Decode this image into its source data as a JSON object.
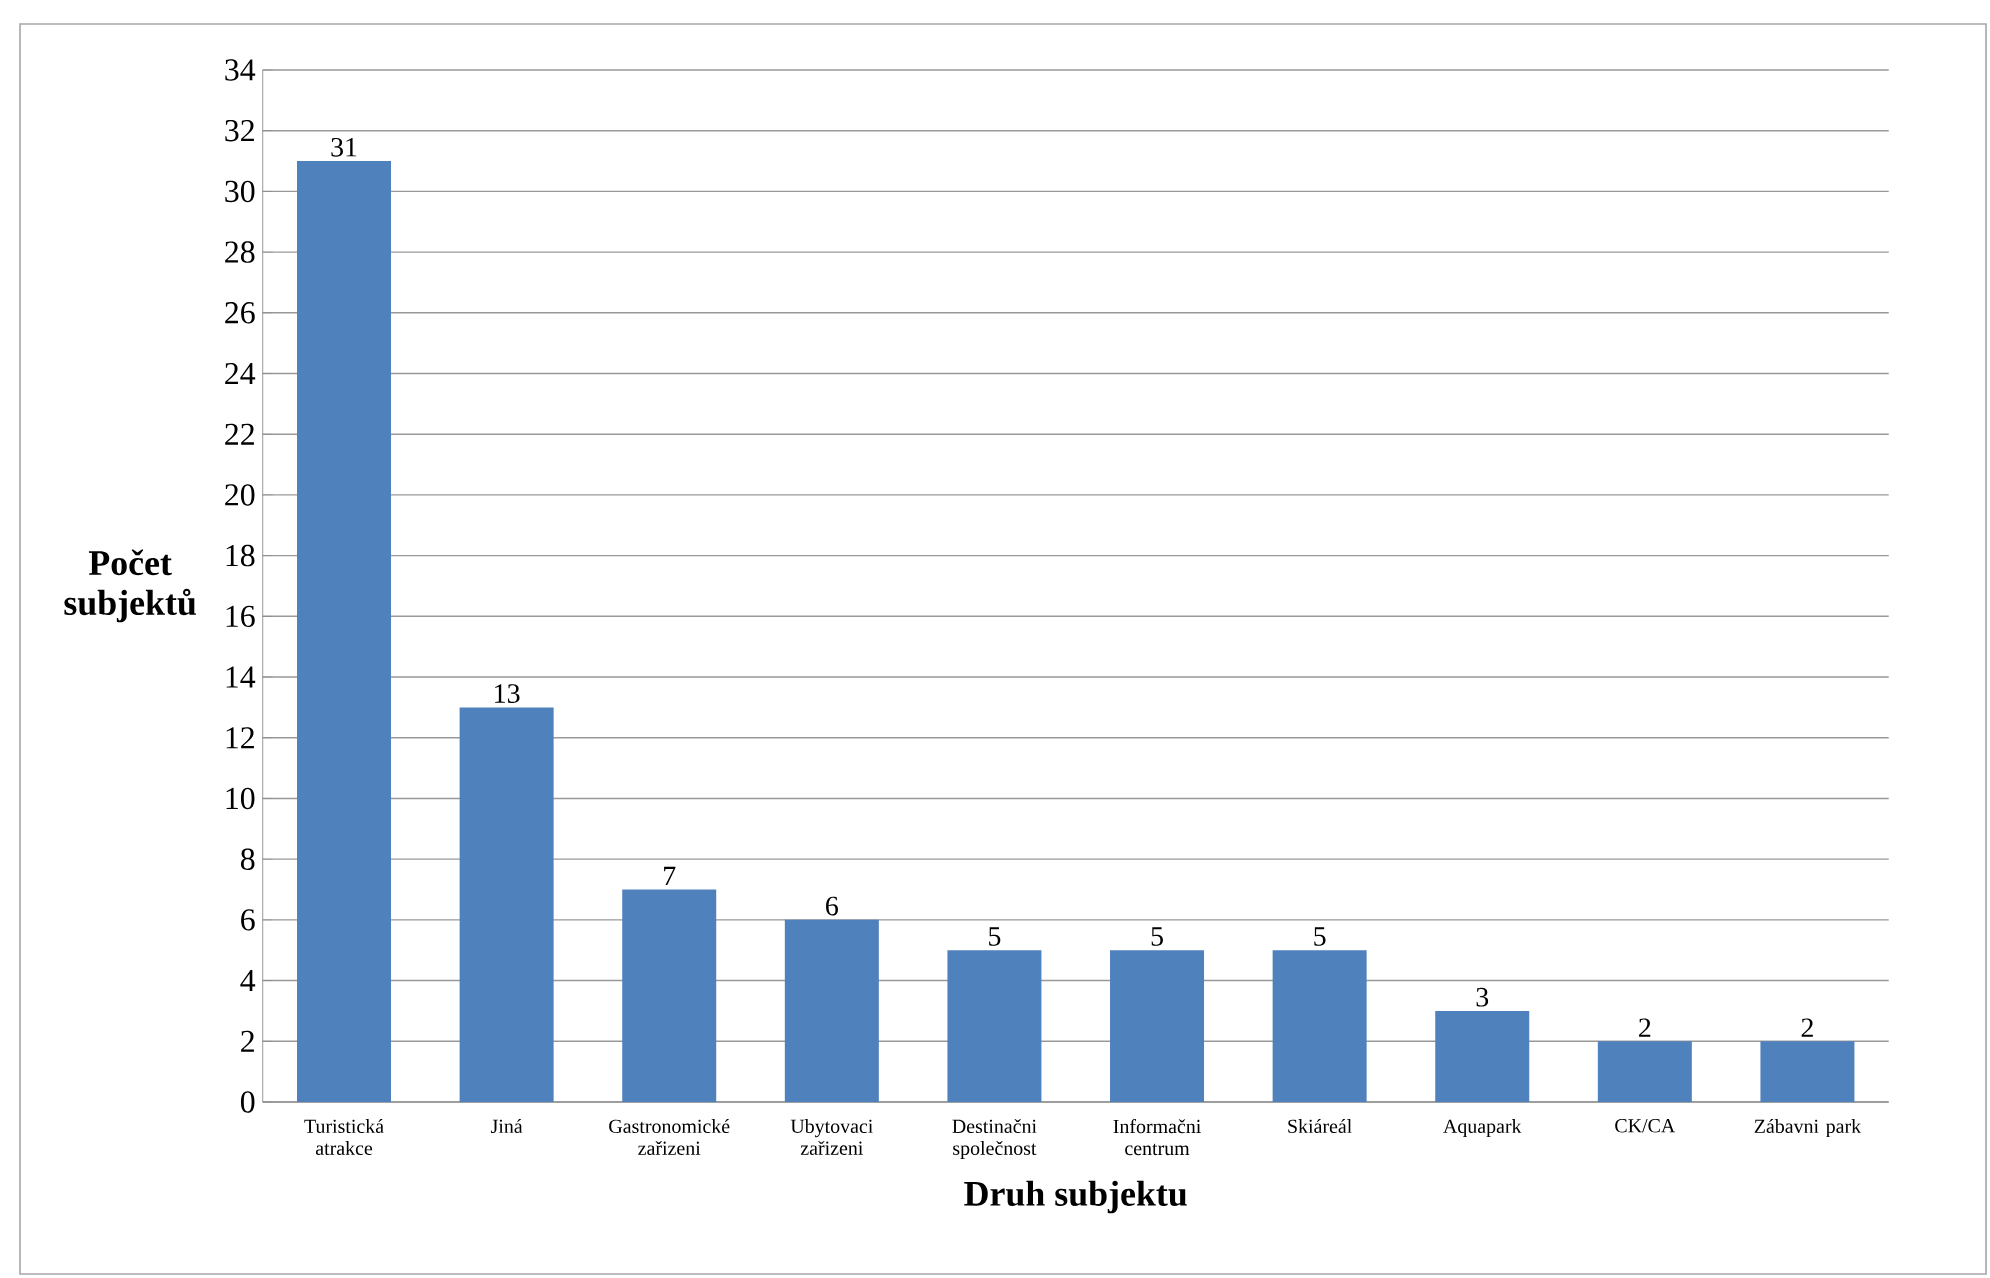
{
  "chart_data": {
    "type": "bar",
    "xlabel": "Druh subjektu",
    "ylabel": "Počet subjektů",
    "categories": [
      "Turistická atrakce",
      "Jiná",
      "Gastronomické zařizeni",
      "Ubytovaci zařizeni",
      "Destinačni společnost",
      "Informačni centrum",
      "Skiáreál",
      "Aquapark",
      "CK/CA",
      "Zábavni park"
    ],
    "values": [
      31,
      13,
      7,
      6,
      5,
      5,
      5,
      3,
      2,
      2
    ],
    "color": "#4f81bd",
    "ylim": [
      0,
      34
    ],
    "yticks": [
      0,
      2,
      4,
      6,
      8,
      10,
      12,
      14,
      16,
      18,
      20,
      22,
      24,
      26,
      28,
      30,
      32,
      34
    ],
    "grid": "y",
    "data_labels": true
  }
}
